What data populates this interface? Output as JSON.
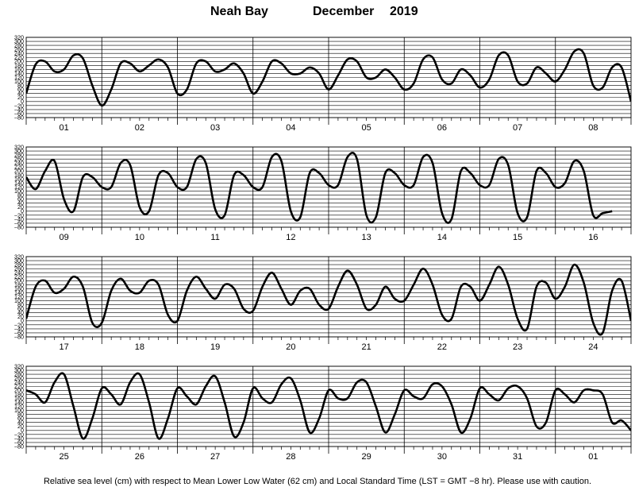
{
  "header": {
    "station": "Neah Bay",
    "month": "December",
    "year": "2019"
  },
  "footer": {
    "note": "Relative sea level (cm) with respect to Mean Lower Low Water (62 cm) and Local Standard Time (LST = GMT −8 hr). Please use with caution."
  },
  "chart_data": {
    "type": "line",
    "title": "Neah Bay          December   2019",
    "xlabel": "",
    "ylabel": "",
    "y_ticks": [
      "320",
      "300",
      "280",
      "260",
      "240",
      "220",
      "200",
      "180",
      "160",
      "140",
      "120",
      "100",
      "80",
      "60",
      "40",
      "20",
      "0",
      "−20",
      "−40",
      "−60",
      "−80"
    ],
    "ylim": [
      -80,
      320
    ],
    "grid": true,
    "line_color": "#000000",
    "panels": [
      {
        "days": [
          "01",
          "02",
          "03",
          "04",
          "05",
          "06",
          "07",
          "08"
        ],
        "samples_per_day": 8,
        "values": [
          40,
          185,
          200,
          150,
          160,
          230,
          215,
          80,
          -20,
          60,
          190,
          190,
          150,
          180,
          210,
          170,
          40,
          60,
          190,
          200,
          150,
          160,
          190,
          140,
          40,
          100,
          200,
          190,
          140,
          140,
          170,
          140,
          60,
          130,
          210,
          200,
          120,
          120,
          160,
          120,
          60,
          90,
          210,
          220,
          110,
          90,
          160,
          130,
          70,
          110,
          230,
          230,
          100,
          90,
          170,
          140,
          100,
          160,
          250,
          240,
          80,
          70,
          170,
          170,
          0
        ]
      },
      {
        "days": [
          "09",
          "10",
          "11",
          "12",
          "13",
          "14",
          "15",
          "16"
        ],
        "samples_per_day": 8,
        "values": [
          170,
          110,
          200,
          250,
          60,
          0,
          170,
          170,
          120,
          120,
          240,
          230,
          20,
          0,
          180,
          190,
          120,
          120,
          260,
          240,
          10,
          -20,
          180,
          180,
          120,
          120,
          270,
          250,
          0,
          -30,
          190,
          190,
          130,
          130,
          270,
          260,
          -20,
          -30,
          190,
          190,
          130,
          130,
          270,
          240,
          -10,
          -40,
          200,
          190,
          130,
          130,
          260,
          230,
          -10,
          -30,
          200,
          190,
          120,
          140,
          250,
          200,
          -20,
          -10,
          0
        ]
      },
      {
        "days": [
          "17",
          "18",
          "19",
          "20",
          "21",
          "22",
          "23",
          "24"
        ],
        "samples_per_day": 8,
        "values": [
          10,
          170,
          200,
          140,
          160,
          220,
          170,
          -10,
          -10,
          150,
          210,
          150,
          140,
          200,
          180,
          30,
          0,
          150,
          220,
          160,
          110,
          180,
          160,
          60,
          50,
          170,
          240,
          160,
          80,
          150,
          160,
          80,
          60,
          170,
          250,
          180,
          60,
          80,
          170,
          110,
          100,
          180,
          260,
          180,
          30,
          10,
          170,
          170,
          100,
          180,
          270,
          180,
          10,
          -40,
          170,
          190,
          110,
          170,
          280,
          190,
          -10,
          -60,
          150,
          200,
          0
        ]
      },
      {
        "days": [
          "25",
          "26",
          "27",
          "28",
          "29",
          "30",
          "31",
          "01"
        ],
        "samples_per_day": 8,
        "values": [
          200,
          180,
          140,
          240,
          280,
          120,
          -40,
          60,
          210,
          180,
          130,
          240,
          280,
          140,
          -40,
          60,
          210,
          170,
          130,
          220,
          270,
          140,
          -30,
          40,
          210,
          160,
          140,
          230,
          260,
          150,
          -10,
          60,
          200,
          160,
          160,
          240,
          240,
          120,
          -10,
          80,
          200,
          170,
          160,
          230,
          220,
          130,
          -10,
          60,
          210,
          180,
          150,
          210,
          220,
          160,
          20,
          40,
          200,
          180,
          140,
          200,
          200,
          180,
          40,
          50,
          0
        ]
      }
    ]
  }
}
